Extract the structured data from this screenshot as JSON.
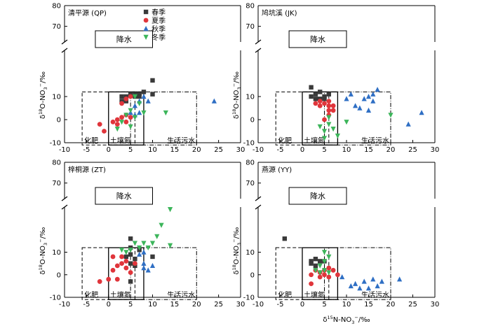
{
  "figure": {
    "x_axis_label": "δ15N-NO3−/‰",
    "y_axis_label": "δ18O-NO3−/‰",
    "legend": [
      {
        "label": "春季",
        "color": "#3a3a3a",
        "marker": "square"
      },
      {
        "label": "夏季",
        "color": "#e0353b",
        "marker": "circle"
      },
      {
        "label": "秋季",
        "color": "#2f6fc4",
        "marker": "triangle-up"
      },
      {
        "label": "冬季",
        "color": "#3cb55a",
        "marker": "triangle-down"
      }
    ],
    "source_boxes": {
      "rain": {
        "label": "降水"
      },
      "fertilizer": {
        "label": "化肥",
        "x": [
          -6,
          6
        ],
        "y": [
          -11,
          12
        ]
      },
      "soil_n": {
        "label": "土壤氮",
        "x": [
          0,
          8
        ],
        "y": [
          -11,
          12
        ]
      },
      "sewage": {
        "label": "生活污水",
        "x": [
          5,
          20
        ],
        "y": [
          -11,
          12
        ]
      }
    }
  },
  "chart_data": [
    {
      "type": "scatter",
      "title": "清平源 (QP)",
      "xlim": [
        -10,
        30
      ],
      "ylim_lower": [
        -10,
        30
      ],
      "ylim_upper_ticks": [
        70,
        80
      ],
      "axis_break": true,
      "x_ticks": [
        -10,
        -5,
        0,
        5,
        10,
        15,
        20,
        25,
        30
      ],
      "y_ticks_lower": [
        -10,
        0,
        10
      ],
      "y_ticks_upper": [
        70,
        80
      ],
      "series": [
        {
          "name": "春季",
          "points": [
            [
              3,
              10
            ],
            [
              4,
              10
            ],
            [
              5,
              11
            ],
            [
              6,
              11
            ],
            [
              7,
              11
            ],
            [
              8,
              12
            ],
            [
              10,
              17
            ],
            [
              10,
              11
            ],
            [
              3,
              8
            ],
            [
              4,
              8
            ],
            [
              6,
              10
            ],
            [
              7,
              10
            ]
          ]
        },
        {
          "name": "夏季",
          "points": [
            [
              -2,
              -2
            ],
            [
              -1,
              -5
            ],
            [
              1,
              -1
            ],
            [
              2,
              0
            ],
            [
              3,
              1
            ],
            [
              4,
              2
            ],
            [
              4,
              -1
            ],
            [
              5,
              1
            ],
            [
              3,
              7
            ],
            [
              4,
              9
            ],
            [
              5,
              10
            ],
            [
              2,
              -2
            ]
          ]
        },
        {
          "name": "秋季",
          "points": [
            [
              5,
              3
            ],
            [
              6,
              6
            ],
            [
              7,
              8
            ],
            [
              8,
              10
            ],
            [
              9,
              8
            ],
            [
              7,
              3
            ],
            [
              6,
              2
            ],
            [
              24,
              8
            ]
          ]
        },
        {
          "name": "冬季",
          "points": [
            [
              3,
              -1
            ],
            [
              4,
              2
            ],
            [
              5,
              4
            ],
            [
              6,
              1
            ],
            [
              5,
              -3
            ],
            [
              7,
              7
            ],
            [
              8,
              3
            ],
            [
              6,
              10
            ],
            [
              13,
              3
            ],
            [
              2,
              -4
            ]
          ]
        }
      ]
    },
    {
      "type": "scatter",
      "title": "鸠坑溪 (JK)",
      "xlim": [
        -10,
        30
      ],
      "ylim_lower": [
        -10,
        30
      ],
      "ylim_upper_ticks": [
        70,
        80
      ],
      "axis_break": true,
      "x_ticks": [
        -10,
        -5,
        0,
        5,
        10,
        15,
        20,
        25,
        30
      ],
      "y_ticks_lower": [
        -10,
        0,
        10
      ],
      "y_ticks_upper": [
        70,
        80
      ],
      "series": [
        {
          "name": "春季",
          "points": [
            [
              2,
              14
            ],
            [
              3,
              11
            ],
            [
              4,
              12
            ],
            [
              5,
              10
            ],
            [
              6,
              11
            ],
            [
              2,
              10
            ],
            [
              3,
              9
            ],
            [
              4,
              9
            ],
            [
              5,
              9
            ]
          ]
        },
        {
          "name": "夏季",
          "points": [
            [
              3,
              7
            ],
            [
              4,
              6
            ],
            [
              5,
              7
            ],
            [
              6,
              6
            ],
            [
              6,
              4
            ],
            [
              7,
              4
            ],
            [
              6,
              2
            ],
            [
              5,
              0
            ],
            [
              7,
              6
            ],
            [
              6,
              8
            ],
            [
              4,
              8
            ]
          ]
        },
        {
          "name": "秋季",
          "points": [
            [
              10,
              9
            ],
            [
              11,
              11
            ],
            [
              12,
              6
            ],
            [
              13,
              5
            ],
            [
              14,
              9
            ],
            [
              15,
              10
            ],
            [
              16,
              11
            ],
            [
              17,
              13
            ],
            [
              15,
              4
            ],
            [
              16,
              8
            ],
            [
              24,
              -2
            ],
            [
              27,
              3
            ]
          ]
        },
        {
          "name": "冬季",
          "points": [
            [
              5,
              -5
            ],
            [
              6,
              -2
            ],
            [
              7,
              -4
            ],
            [
              8,
              -7
            ],
            [
              5,
              -8
            ],
            [
              10,
              -1
            ],
            [
              20,
              2
            ],
            [
              4,
              -3
            ],
            [
              6,
              1
            ]
          ]
        }
      ]
    },
    {
      "type": "scatter",
      "title": "梓桐源 (ZT)",
      "xlim": [
        -10,
        30
      ],
      "ylim_lower": [
        -10,
        30
      ],
      "ylim_upper_ticks": [
        70,
        80
      ],
      "axis_break": true,
      "x_ticks": [
        -10,
        -5,
        0,
        5,
        10,
        15,
        20,
        25,
        30
      ],
      "y_ticks_lower": [
        -10,
        0,
        10
      ],
      "y_ticks_upper": [
        70,
        80
      ],
      "series": [
        {
          "name": "春季",
          "points": [
            [
              5,
              16
            ],
            [
              5,
              12
            ],
            [
              5,
              9
            ],
            [
              6,
              7
            ],
            [
              6,
              4
            ],
            [
              7,
              11
            ],
            [
              5,
              5
            ],
            [
              4,
              8
            ],
            [
              10,
              8
            ],
            [
              5,
              -3
            ]
          ]
        },
        {
          "name": "夏季",
          "points": [
            [
              -2,
              -3
            ],
            [
              0,
              -2
            ],
            [
              1,
              2
            ],
            [
              2,
              4
            ],
            [
              3,
              5
            ],
            [
              3,
              8
            ],
            [
              4,
              6
            ],
            [
              4,
              3
            ],
            [
              5,
              1
            ],
            [
              6,
              5
            ],
            [
              2,
              -2
            ],
            [
              1,
              8
            ]
          ]
        },
        {
          "name": "秋季",
          "points": [
            [
              7,
              9
            ],
            [
              8,
              5
            ],
            [
              8,
              3
            ],
            [
              9,
              2
            ],
            [
              10,
              4
            ],
            [
              8,
              10
            ]
          ]
        },
        {
          "name": "冬季",
          "points": [
            [
              5,
              11
            ],
            [
              6,
              14
            ],
            [
              7,
              12
            ],
            [
              8,
              14
            ],
            [
              9,
              12
            ],
            [
              10,
              14
            ],
            [
              11,
              17
            ],
            [
              12,
              22
            ],
            [
              14,
              29
            ],
            [
              14,
              13
            ],
            [
              4,
              10
            ],
            [
              3,
              11
            ]
          ]
        }
      ]
    },
    {
      "type": "scatter",
      "title": "燕源 (YY)",
      "xlim": [
        -10,
        30
      ],
      "ylim_lower": [
        -10,
        30
      ],
      "ylim_upper_ticks": [
        70,
        80
      ],
      "axis_break": true,
      "x_ticks": [
        -10,
        -5,
        0,
        5,
        10,
        15,
        20,
        25,
        30
      ],
      "y_ticks_lower": [
        -10,
        0,
        10
      ],
      "y_ticks_upper": [
        70,
        80
      ],
      "series": [
        {
          "name": "春季",
          "points": [
            [
              -4,
              16
            ],
            [
              2,
              6
            ],
            [
              3,
              7
            ],
            [
              4,
              6
            ],
            [
              3,
              4
            ],
            [
              2,
              5
            ],
            [
              5,
              6
            ]
          ]
        },
        {
          "name": "夏季",
          "points": [
            [
              2,
              0
            ],
            [
              3,
              2
            ],
            [
              4,
              1
            ],
            [
              4,
              -1
            ],
            [
              5,
              0
            ],
            [
              6,
              -1
            ],
            [
              7,
              2
            ],
            [
              8,
              0
            ],
            [
              6,
              3
            ],
            [
              2,
              -4
            ],
            [
              5,
              2
            ]
          ]
        },
        {
          "name": "秋季",
          "points": [
            [
              11,
              -5
            ],
            [
              12,
              -4
            ],
            [
              13,
              -6
            ],
            [
              14,
              -3
            ],
            [
              15,
              -6
            ],
            [
              16,
              -2
            ],
            [
              17,
              -5
            ],
            [
              18,
              -3
            ],
            [
              22,
              -2
            ],
            [
              9,
              -1
            ]
          ]
        },
        {
          "name": "冬季",
          "points": [
            [
              3,
              2
            ],
            [
              4,
              4
            ],
            [
              5,
              6
            ],
            [
              6,
              8
            ],
            [
              5,
              2
            ],
            [
              4,
              1
            ],
            [
              6,
              1
            ],
            [
              5,
              10
            ]
          ]
        }
      ]
    }
  ]
}
